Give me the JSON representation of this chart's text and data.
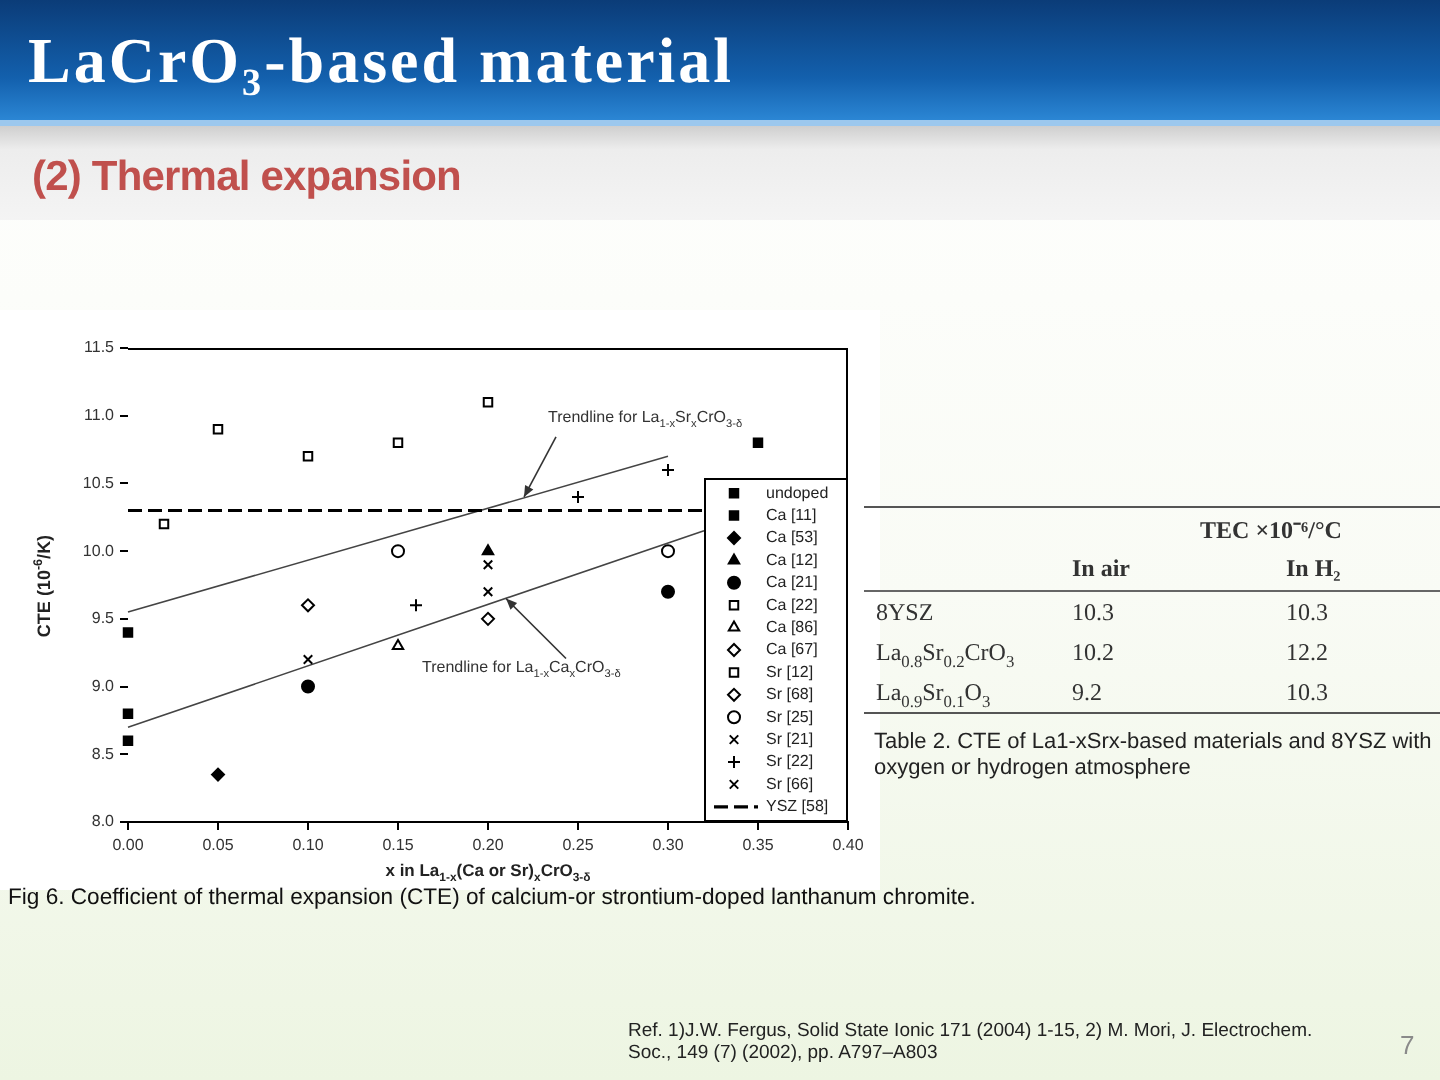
{
  "chart_data": [
    {
      "type": "scatter",
      "title": "LaCrO₃-based material",
      "subtitle": "(2) Thermal expansion",
      "xlabel": "x in La$_{1-x}$(Ca or Sr)$_{x}$CrO$_{3-δ}$",
      "ylabel": "CTE (10$^{-6}$/K)",
      "xlim": [
        0,
        0.4
      ],
      "ylim": [
        8,
        11.5
      ],
      "xticks": [
        {
          "value": 0,
          "label": "0.00"
        },
        {
          "value": 0.05,
          "label": "0.05"
        },
        {
          "value": 0.1,
          "label": "0.10"
        },
        {
          "value": 0.15,
          "label": "0.15"
        },
        {
          "value": 0.2,
          "label": "0.20"
        },
        {
          "value": 0.25,
          "label": "0.25"
        },
        {
          "value": 0.3,
          "label": "0.30"
        },
        {
          "value": 0.35,
          "label": "0.35"
        },
        {
          "value": 0.4,
          "label": "0.40"
        }
      ],
      "yticks": [
        {
          "value": 8,
          "label": "8.0"
        },
        8.5,
        {
          "value": 9,
          "label": "9.0"
        },
        9.5,
        {
          "value": 10,
          "label": "10.0"
        },
        10.5,
        {
          "value": 11,
          "label": "11.0"
        },
        11.5
      ],
      "legend": "bottom right",
      "series": [
        {
          "name": "undoped",
          "color": "#000000",
          "marker": "square",
          "x": [
            0,
            0,
            0
          ],
          "values": [
            9.4,
            8.8,
            8.6
          ]
        },
        {
          "name": "Ca [11]",
          "color": "#000000",
          "marker": "square",
          "x": [
            0.35
          ],
          "values": [
            10.8
          ]
        },
        {
          "name": "Ca [53]",
          "color": "#000000",
          "marker": "diamond",
          "x": [
            0.05
          ],
          "values": [
            8.35
          ]
        },
        {
          "name": "Ca [12]",
          "color": "#000000",
          "marker": "triangle",
          "x": [
            0.2
          ],
          "values": [
            10.0
          ]
        },
        {
          "name": "Ca [21]",
          "color": "#000000",
          "marker": "circle",
          "x": [
            0.1,
            0.3
          ],
          "values": [
            9.0,
            9.7
          ]
        },
        {
          "name": "Ca [22]",
          "color": "#000000",
          "marker": "square-open",
          "x": [
            0.02
          ],
          "values": [
            10.2
          ]
        },
        {
          "name": "Ca [86]",
          "color": "#000000",
          "marker": "triangle-open",
          "x": [
            0.15
          ],
          "values": [
            9.3
          ]
        },
        {
          "name": "Ca [67]",
          "color": "#000000",
          "marker": "diamond-open",
          "x": [
            0.2
          ],
          "values": [
            9.5
          ]
        },
        {
          "name": "Sr [12]",
          "color": "#000000",
          "marker": "square-open",
          "x": [
            0.05,
            0.1,
            0.15,
            0.2
          ],
          "values": [
            10.9,
            10.7,
            10.8,
            11.1
          ]
        },
        {
          "name": "Sr [68]",
          "color": "#000000",
          "marker": "diamond-open",
          "x": [
            0.1
          ],
          "values": [
            9.6
          ]
        },
        {
          "name": "Sr [25]",
          "color": "#000000",
          "marker": "circle-open",
          "x": [
            0.15,
            0.3
          ],
          "values": [
            10.0,
            10.0
          ]
        },
        {
          "name": "Sr [21]",
          "color": "#000000",
          "marker": "x",
          "x": [
            0.2
          ],
          "values": [
            9.9
          ]
        },
        {
          "name": "Sr [22]",
          "color": "#000000",
          "marker": "cross",
          "x": [
            0.16,
            0.25,
            0.3
          ],
          "values": [
            9.6,
            10.4,
            10.6
          ]
        },
        {
          "name": "Sr [66]",
          "color": "#000000",
          "marker": "x",
          "x": [
            0.1,
            0.2
          ],
          "values": [
            9.2,
            9.7
          ]
        },
        {
          "name": "YSZ [58]",
          "type": "line",
          "color": "#000000",
          "line_style": "dashed",
          "marker": "none",
          "x": [
            0,
            0.32
          ],
          "values": [
            10.3,
            10.3
          ]
        },
        {
          "type": "line",
          "color": "#444444",
          "line_style": "solid",
          "marker": "none",
          "x": [
            0,
            0.3
          ],
          "values": [
            9.55,
            10.7
          ]
        },
        {
          "type": "line",
          "color": "#444444",
          "line_style": "solid",
          "marker": "none",
          "x": [
            0,
            0.32
          ],
          "values": [
            8.7,
            10.15
          ]
        }
      ],
      "annotations": [
        {
          "text": "Trendline for La$_{1-x}$Sr$_{x}$CrO$_{3-δ}$",
          "x": 0.22,
          "y": 10.4
        },
        {
          "text": "Trendline for La$_{1-x}$Ca$_{x}$CrO$_{3-δ}$",
          "x": 0.21,
          "y": 9.65
        },
        "Fig 6. Coefficient of thermal expansion (CTE) of calcium-or strontium-doped lanthanum chromite.",
        "Ref. 1)J.W. Fergus, Solid State Ionic 171 (2004) 1-15, 2) M. Mori, J. Electrochem. Soc., 149 (7) (2002), pp. A797–A803",
        "7"
      ]
    },
    {
      "type": "heatmap",
      "title": "TEC ×10⁻⁶/°C",
      "categories": [
        "In air",
        "In H₂"
      ],
      "y_categories": [
        "8YSZ",
        "La$_{0.8}$Sr$_{0.2}$CrO$_{3}$",
        "La$_{0.9}$Sr$_{0.1}$O$_{3}$"
      ],
      "cells": [
        [
          10.3,
          10.3
        ],
        [
          10.2,
          12.2
        ],
        [
          9.2,
          10.3
        ]
      ],
      "data_labels": true,
      "annotations": [
        "Table 2. CTE of La1-xSrx-based materials and 8YSZ with oxygen or hydrogen atmosphere"
      ]
    }
  ]
}
